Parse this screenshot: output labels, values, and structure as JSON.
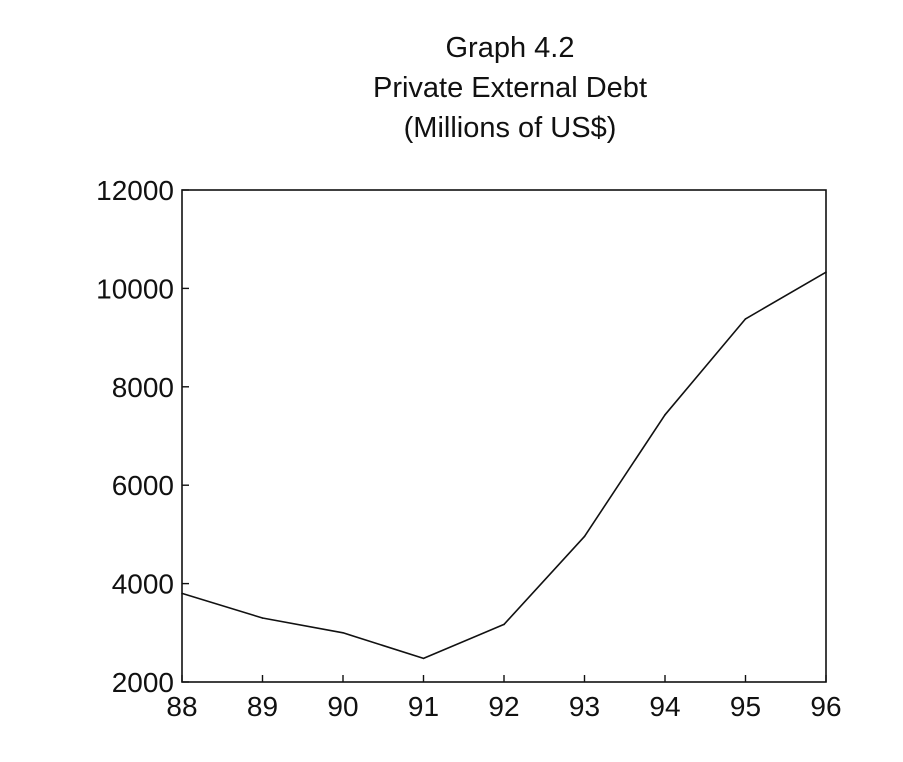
{
  "chart_data": {
    "type": "line",
    "title": "Graph 4.2",
    "subtitle_lines": [
      "Private External Debt",
      "(Millions of US$)"
    ],
    "xlabel": "",
    "ylabel": "",
    "categories": [
      "88",
      "89",
      "90",
      "91",
      "92",
      "93",
      "94",
      "95",
      "96"
    ],
    "series": [
      {
        "values": [
          3800,
          3300,
          3000,
          2480,
          3170,
          4960,
          7430,
          9380,
          10330
        ]
      }
    ],
    "ylim": [
      2000,
      12000
    ],
    "yticks": [
      "2000",
      "4000",
      "6000",
      "8000",
      "10000",
      "12000"
    ],
    "grid": false,
    "legend": "none",
    "line_color": "#111111"
  }
}
